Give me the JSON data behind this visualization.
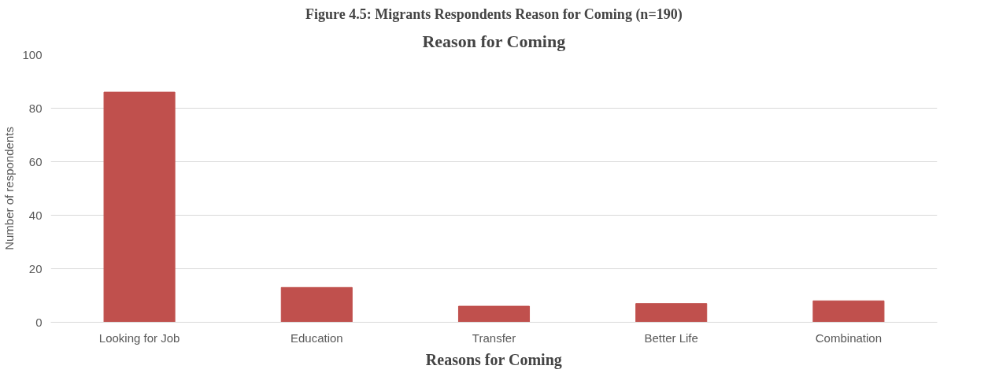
{
  "chart_data": {
    "type": "bar",
    "title": "Reason for Coming",
    "annotations": [
      "Figure 4.5: Migrants Respondents Reason for Coming (n=190)"
    ],
    "xlabel": "Reasons for Coming",
    "ylabel": "Number of respondents",
    "categories": [
      "Looking for Job",
      "Education",
      "Transfer",
      "Better Life",
      "Combination"
    ],
    "values": [
      86,
      13,
      6,
      7,
      8
    ],
    "color": "#c0504d",
    "ylim": [
      0,
      100
    ],
    "yticks": [
      0,
      20,
      40,
      60,
      80,
      100
    ],
    "grid": "y"
  }
}
